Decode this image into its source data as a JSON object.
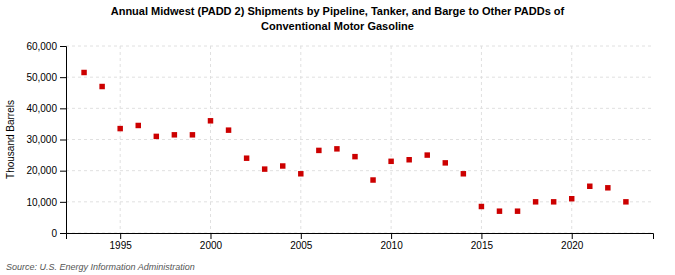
{
  "chart_data": {
    "type": "scatter",
    "title": "Annual Midwest (PADD 2) Shipments by Pipeline, Tanker, and Barge to Other PADDs of",
    "subtitle": "Conventional Motor Gasoline",
    "ylabel": "Thousand Barrels",
    "source": "Source: U.S. Energy Information Administration",
    "color": "#cc0000",
    "marker": "square",
    "grid": true,
    "x": [
      1993,
      1994,
      1995,
      1996,
      1997,
      1998,
      1999,
      2000,
      2001,
      2002,
      2003,
      2004,
      2005,
      2006,
      2007,
      2008,
      2009,
      2010,
      2011,
      2012,
      2013,
      2014,
      2015,
      2016,
      2017,
      2018,
      2019,
      2020,
      2021,
      2022,
      2023
    ],
    "values": [
      51500,
      47000,
      33500,
      34500,
      31000,
      31500,
      31500,
      36000,
      33000,
      24000,
      20500,
      21500,
      19000,
      26500,
      27000,
      24500,
      17000,
      23000,
      23500,
      25000,
      22500,
      19000,
      8500,
      7000,
      7000,
      10000,
      10000,
      11000,
      15000,
      14500,
      10000
    ],
    "xlim": [
      1992.0,
      2024.5
    ],
    "ylim": [
      0,
      60000
    ],
    "xticks": [
      1995,
      2000,
      2005,
      2010,
      2015,
      2020
    ],
    "yticks": [
      0,
      {
        "value": 10000,
        "label": "10,000"
      },
      {
        "value": 20000,
        "label": "20,000"
      },
      {
        "value": 30000,
        "label": "30,000"
      },
      {
        "value": 40000,
        "label": "40,000"
      },
      {
        "value": 50000,
        "label": "50,000"
      },
      {
        "value": 60000,
        "label": "60,000"
      }
    ]
  }
}
